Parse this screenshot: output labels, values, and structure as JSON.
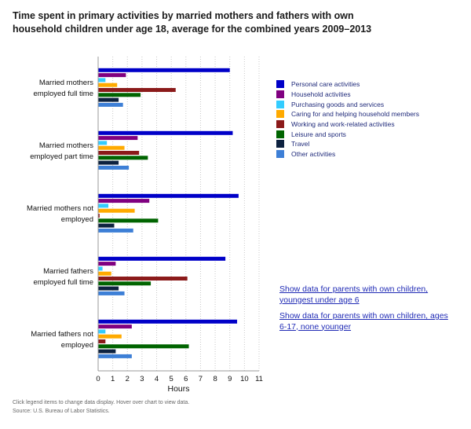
{
  "header": {
    "title": "Time spent in primary activities by married mothers and fathers with own household children under age 18, average for the combined years 2009–2013"
  },
  "chart_data": {
    "type": "bar",
    "orientation": "horizontal",
    "title": "Time spent in primary activities by married mothers and fathers with own household children under age 18, average for the combined years 2009–2013",
    "xlabel": "Hours",
    "ylabel": "",
    "xlim": [
      0,
      11
    ],
    "xticks": [
      "0",
      "1",
      "2",
      "3",
      "4",
      "5",
      "6",
      "7",
      "8",
      "9",
      "10",
      "11"
    ],
    "grid": "vertical dotted",
    "legend_placement": "right",
    "categories": [
      [
        "Married mothers",
        "employed full time"
      ],
      [
        "Married mothers",
        "employed part time"
      ],
      [
        "Married mothers not",
        "employed"
      ],
      [
        "Married fathers",
        "employed full time"
      ],
      [
        "Married fathers not",
        "employed"
      ]
    ],
    "series": [
      {
        "name": "Personal care activities",
        "color": "#0000c8",
        "values": [
          9.0,
          9.2,
          9.6,
          8.7,
          9.5
        ]
      },
      {
        "name": "Household activities",
        "color": "#800080",
        "values": [
          1.9,
          2.7,
          3.5,
          1.2,
          2.3
        ]
      },
      {
        "name": "Purchasing goods and services",
        "color": "#33ccff",
        "values": [
          0.5,
          0.6,
          0.7,
          0.3,
          0.5
        ]
      },
      {
        "name": "Caring for and helping household members",
        "color": "#ffaa00",
        "values": [
          1.3,
          1.8,
          2.5,
          0.9,
          1.6
        ]
      },
      {
        "name": "Working and work-related activities",
        "color": "#8b1a1a",
        "values": [
          5.3,
          2.8,
          0.1,
          6.1,
          0.5
        ]
      },
      {
        "name": "Leisure and sports",
        "color": "#006400",
        "values": [
          2.9,
          3.4,
          4.1,
          3.6,
          6.2
        ]
      },
      {
        "name": "Travel",
        "color": "#0d2240",
        "values": [
          1.4,
          1.4,
          1.1,
          1.4,
          1.2
        ]
      },
      {
        "name": "Other activities",
        "color": "#3d7fd6",
        "values": [
          1.7,
          2.1,
          2.4,
          1.8,
          2.3
        ]
      }
    ]
  },
  "links": [
    "Show data for parents with own children, youngest under age 6",
    "Show data for parents with own children, ages 6-17, none younger"
  ],
  "footer": {
    "note": "Click legend items to change data display. Hover over chart to view data.",
    "source": "Source: U.S. Bureau of Labor Statistics."
  }
}
